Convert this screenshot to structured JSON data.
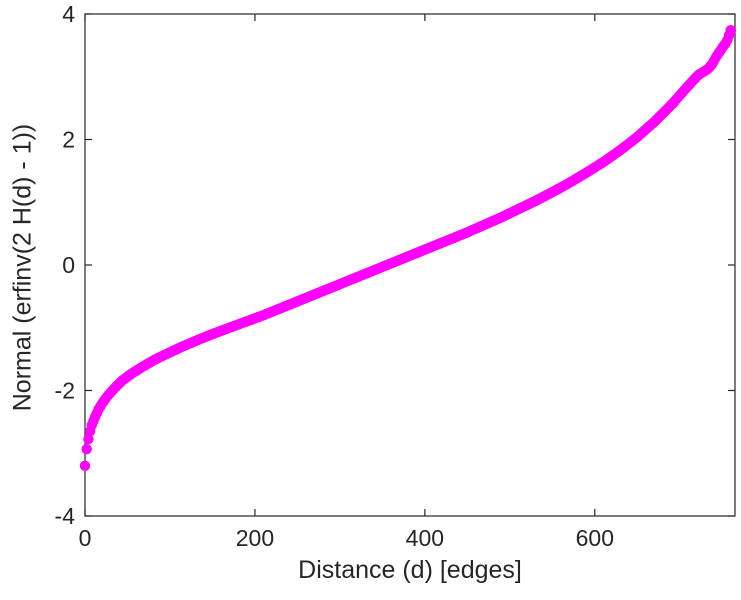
{
  "chart_data": {
    "type": "scatter",
    "title": "",
    "xlabel": "Distance (d) [edges]",
    "ylabel": "Normal (erfinv(2 H(d) - 1))",
    "xlim": [
      0,
      765
    ],
    "ylim": [
      -4,
      4
    ],
    "x_ticks": [
      0,
      200,
      400,
      600
    ],
    "y_ticks": [
      -4,
      -2,
      0,
      2,
      4
    ],
    "grid": false,
    "legend": "none",
    "marker": "o",
    "marker_color": "#FF00FF",
    "axis_color": "#262626",
    "points": [
      [
        0,
        -3.2
      ],
      [
        1,
        -3.02
      ],
      [
        3,
        -2.85
      ],
      [
        5,
        -2.7
      ],
      [
        8,
        -2.55
      ],
      [
        12,
        -2.42
      ],
      [
        16,
        -2.3
      ],
      [
        21,
        -2.19
      ],
      [
        27,
        -2.08
      ],
      [
        35,
        -1.96
      ],
      [
        44,
        -1.84
      ],
      [
        55,
        -1.73
      ],
      [
        68,
        -1.62
      ],
      [
        82,
        -1.51
      ],
      [
        97,
        -1.41
      ],
      [
        113,
        -1.31
      ],
      [
        130,
        -1.21
      ],
      [
        150,
        -1.1
      ],
      [
        170,
        -1.0
      ],
      [
        190,
        -0.9
      ],
      [
        210,
        -0.8
      ],
      [
        230,
        -0.69
      ],
      [
        250,
        -0.58
      ],
      [
        270,
        -0.47
      ],
      [
        290,
        -0.36
      ],
      [
        310,
        -0.25
      ],
      [
        330,
        -0.14
      ],
      [
        350,
        -0.03
      ],
      [
        370,
        0.08
      ],
      [
        390,
        0.19
      ],
      [
        410,
        0.3
      ],
      [
        430,
        0.41
      ],
      [
        450,
        0.52
      ],
      [
        470,
        0.64
      ],
      [
        490,
        0.76
      ],
      [
        510,
        0.89
      ],
      [
        530,
        1.02
      ],
      [
        550,
        1.16
      ],
      [
        570,
        1.31
      ],
      [
        590,
        1.47
      ],
      [
        610,
        1.64
      ],
      [
        630,
        1.83
      ],
      [
        650,
        2.04
      ],
      [
        670,
        2.28
      ],
      [
        690,
        2.55
      ],
      [
        705,
        2.78
      ],
      [
        715,
        2.93
      ],
      [
        722,
        3.03
      ],
      [
        728,
        3.08
      ],
      [
        733,
        3.12
      ],
      [
        738,
        3.2
      ],
      [
        743,
        3.32
      ],
      [
        748,
        3.42
      ],
      [
        752,
        3.5
      ],
      [
        755,
        3.55
      ],
      [
        757,
        3.62
      ],
      [
        759,
        3.7
      ],
      [
        760,
        3.74
      ]
    ]
  }
}
